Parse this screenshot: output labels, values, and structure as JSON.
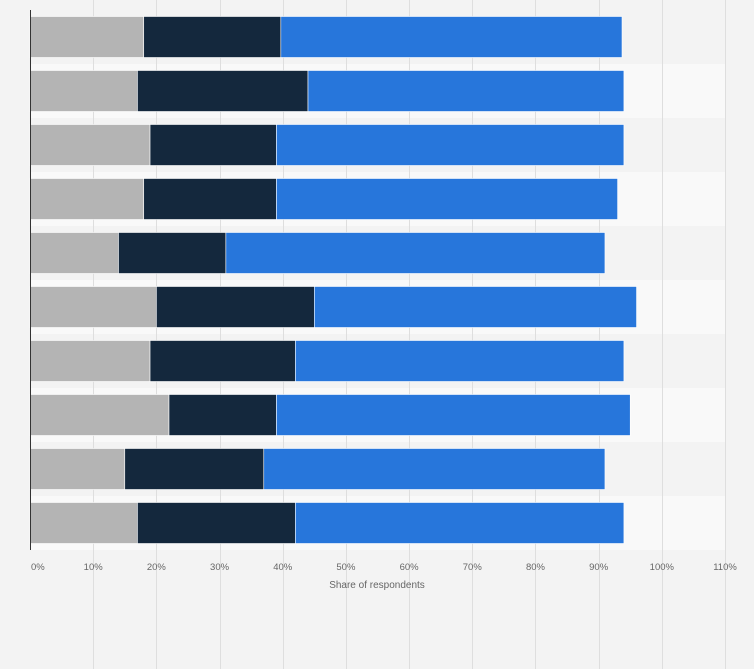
{
  "chart_data": {
    "type": "bar",
    "orientation": "horizontal",
    "stacked": true,
    "title": "",
    "xlabel": "Share of respondents",
    "ylabel": "",
    "xlim": [
      0,
      110
    ],
    "xticks": [
      0,
      10,
      20,
      30,
      40,
      50,
      60,
      70,
      80,
      90,
      100,
      110
    ],
    "xtick_labels": [
      "0%",
      "10%",
      "20%",
      "30%",
      "40%",
      "50%",
      "60%",
      "70%",
      "80%",
      "90%",
      "100%",
      "110%"
    ],
    "categories": [
      "",
      "",
      "",
      "",
      "",
      "",
      "",
      "",
      "",
      ""
    ],
    "series": [
      {
        "name": "",
        "color": "#b4b4b4",
        "values": [
          18,
          17,
          19,
          18,
          14,
          20,
          19,
          22,
          15,
          17
        ]
      },
      {
        "name": "",
        "color": "#14283d",
        "values": [
          21.7,
          27,
          20,
          21,
          17,
          25,
          23,
          17,
          22,
          25
        ]
      },
      {
        "name": "",
        "color": "#2776db",
        "values": [
          54,
          50,
          55,
          54,
          60,
          51,
          52,
          56,
          54,
          52
        ]
      }
    ],
    "grid": true,
    "legend": "none"
  },
  "colors": {
    "background": "#f3f3f3",
    "band_light": "#f9f9f9",
    "band_dark": "#f3f3f3",
    "gridline": "#dedede",
    "axis": "#333333",
    "tick_text": "#666666"
  }
}
